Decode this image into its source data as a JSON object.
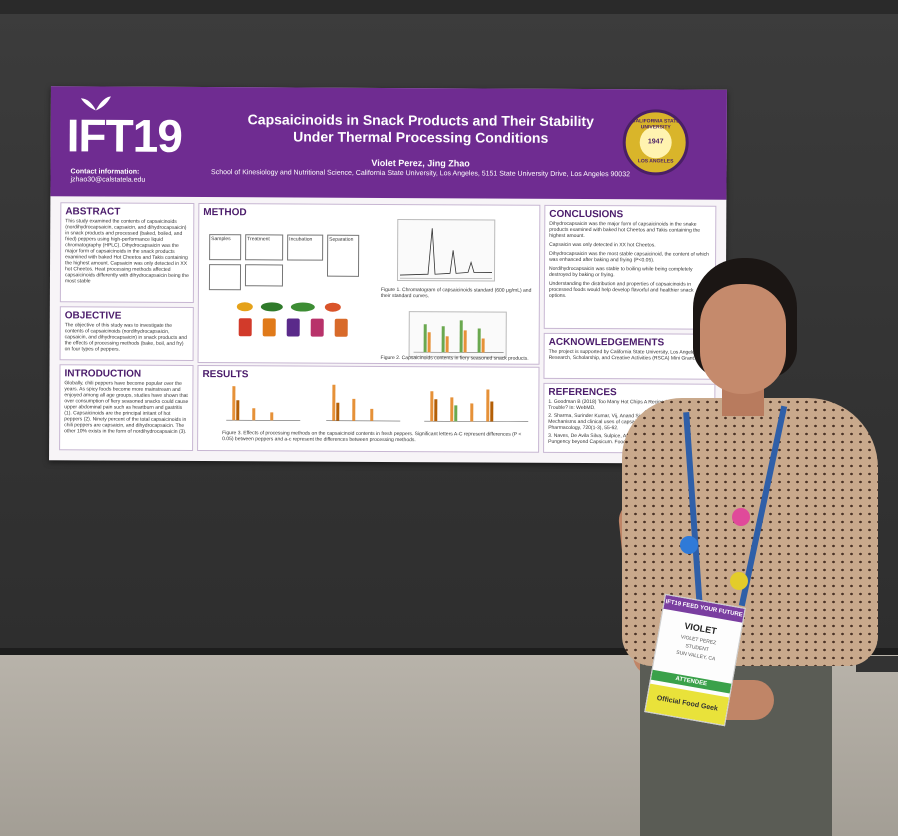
{
  "poster": {
    "logo": "IFT19",
    "contact_label": "Contact information:",
    "contact_email": "jzhao30@calstatela.edu",
    "title": "Capsaicinoids in Snack Products and Their Stability Under Thermal Processing Conditions",
    "authors": "Violet Perez, Jing Zhao",
    "affiliation": "School of Kinesiology and Nutritional Science, California State University, Los Angeles, 5151 State University Drive, Los Angeles 90032",
    "seal_text": "CALIFORNIA STATE UNIVERSITY",
    "seal_bottom": "LOS ANGELES",
    "seal_year": "1947",
    "sections": {
      "abstract": {
        "heading": "ABSTRACT",
        "text": "This study examined the contents of capsaicinoids (nordihydrocapsaicin, capsaicin, and dihydrocapsaicin) in snack products and processed (baked, boiled, and fried) peppers using high-performance liquid chromatography (HPLC). Dihydrocapsaicin was the major form of capsaicinoids in the snack products examined with baked Hot Cheetos and Takis containing the highest amount. Capsaicin was only detected in XX hot Cheetos. Heat processing methods affected capsaicinoids differently with dihydrocapsaicin being the most stable"
      },
      "objective": {
        "heading": "OBJECTIVE",
        "text": "The objective of this study was to investigate the contents of capsaicinoids (nordihydrocapsaicin, capsaicin, and dihydrocapsaicin) in snack products and the effects of processing methods (bake, boil, and fry) on four types of peppers."
      },
      "introduction": {
        "heading": "INTRODUCTION",
        "text": "Globally, chili peppers have become popular over the years. As spicy foods become more mainstream and enjoyed among all age groups, studies have shown that over consumption of fiery seasoned snacks could cause upper abdominal pain such as heartburn and gastritis (1). Capsaicinoids are the principal irritant of hot peppers (2). Ninety percent of the total capsaicinoids in chili peppers are capsaicin, and dihydrocapsaicin. The other 10% exists in the form of nordihydrocapsaicin (3)."
      },
      "method": {
        "heading": "METHOD",
        "flow_labels": [
          "Samples",
          "Treatment",
          "Incubation",
          "Separation"
        ],
        "figure1_caption": "Figure 1. Chromatogram of capsaicinoids standard (600 μg/mL) and their standard curves.",
        "figure2_caption": "Figure 2. Capsaicinoids contents in fiery seasoned snack products."
      },
      "results": {
        "heading": "RESULTS",
        "figure3_caption": "Figure 3. Effects of processing methods on the capsaicinoid contents in fresh peppers. Significant letters A-C represent differences (P < 0.05) between peppers and a-c represent the differences between processing methods."
      },
      "conclusions": {
        "heading": "CONCLUSIONS",
        "bullets": [
          "Dihydrocapsaicin was the major form of capsaicinoids in the snake products examined with baked hot Cheetos and Takis containing the highest amount.",
          "Capsaicin was only detected in XX hot Cheetos.",
          "Dihydrocapsaicin was the most stable capsaicinoid, the content of which was enhanced after baking and frying (P<0.05).",
          "Nordihydrocapsaicin was stable to boiling while being completely destroyed by baking or frying.",
          "Understanding the distribution and properties of capsaicinoids in processed foods would help develop flavorful and healthier snack options."
        ]
      },
      "acknowledgements": {
        "heading": "ACKNOWLEDGEMENTS",
        "text": "The project is supported by California State University, Los Angeles Research, Scholarship, and Creative Activities (RSCA) Mini Grant."
      },
      "references": {
        "heading": "REFERENCES",
        "items": [
          "1. Goodman B (2018) Too Many Hot Chips A Recipe for Stomach Trouble? In: WebMD.",
          "2. Sharma, Surinder Kumar, Vij, Anand Singh, & Sharma Mahesh. Mechanisms and clinical uses of capsaicin. European Journal of Pharmacology, 720(1-3), 55-62.",
          "3. Naves, De Avila Silva, Sulpice, Araujo, Vieira... Capsaicinoids: Pungency beyond Capsicum. Food Science. 34(2) 109-120."
        ]
      }
    }
  },
  "badge": {
    "top_text": "IFT19 FEED YOUR FUTURE",
    "name": "VIOLET",
    "line1": "VIOLET PEREZ",
    "line2": "STUDENT",
    "line3": "SUN VALLEY, CA",
    "attendee": "ATTENDEE",
    "footer": "Official Food Geek"
  },
  "colors": {
    "poster_purple": "#6f2c91",
    "heading_purple": "#4b1c6b",
    "lanyard_blue": "#2f5fa8"
  }
}
